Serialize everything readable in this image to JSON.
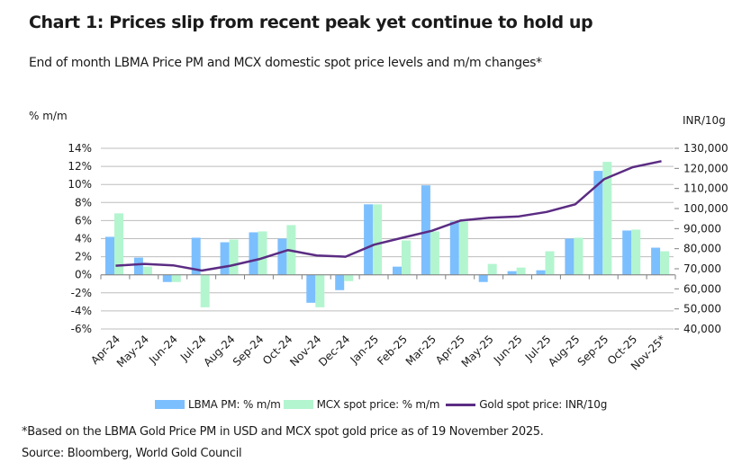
{
  "header": {
    "title": "Chart 1: Prices slip from recent peak yet continue to hold up",
    "subtitle": "End of month LBMA Price PM and MCX domestic spot price levels and m/m changes*"
  },
  "footer": {
    "footnote": "*Based on the LBMA Gold Price PM in USD and MCX spot gold price as of 19 November 2025.",
    "source": "Source: Bloomberg, World Gold Council"
  },
  "colors": {
    "lbma": "#7cbfff",
    "mcx": "#b3f5cf",
    "line": "#5b2c83",
    "grid": "#bdbdbd",
    "axis": "#808080"
  },
  "chart_data": {
    "type": "bar",
    "title": "Chart 1: Prices slip from recent peak yet continue to hold up",
    "subtitle": "End of month LBMA Price PM and MCX domestic spot price levels and m/m changes*",
    "xlabel": "",
    "ylabel": "% m/m",
    "y2label": "INR/10g",
    "categories": [
      "Apr-24",
      "May-24",
      "Jun-24",
      "Jul-24",
      "Aug-24",
      "Sep-24",
      "Oct-24",
      "Nov-24",
      "Dec-24",
      "Jan-25",
      "Feb-25",
      "Mar-25",
      "Apr-25",
      "May-25",
      "Jun-25",
      "Jul-25",
      "Aug-25",
      "Sep-25",
      "Oct-25",
      "Nov-25*"
    ],
    "ylim": [
      -6,
      14
    ],
    "yticks": [
      "14%",
      "12%",
      "10%",
      "8%",
      "6%",
      "4%",
      "2%",
      "0%",
      "-2%",
      "-4%",
      "-6%"
    ],
    "y2lim": [
      40000,
      130000
    ],
    "y2ticks": [
      "130,000",
      "120,000",
      "110,000",
      "100,000",
      "90,000",
      "80,000",
      "70,000",
      "60,000",
      "50,000",
      "40,000"
    ],
    "grid": true,
    "legend_position": "bottom",
    "series": [
      {
        "name": "LBMA PM: % m/m",
        "type": "bar",
        "axis": "left",
        "values": [
          4.2,
          1.9,
          -0.8,
          4.1,
          3.6,
          4.7,
          4.0,
          -3.1,
          -1.7,
          7.8,
          0.9,
          9.9,
          5.9,
          -0.8,
          0.4,
          0.5,
          4.0,
          11.5,
          4.9,
          3.0
        ]
      },
      {
        "name": "MCX spot price: % m/m",
        "type": "bar",
        "axis": "left",
        "values": [
          6.8,
          0.9,
          -0.8,
          -3.6,
          3.9,
          4.8,
          5.5,
          -3.6,
          -0.7,
          7.8,
          3.8,
          4.8,
          5.9,
          1.2,
          0.8,
          2.6,
          4.1,
          12.5,
          5.0,
          2.6
        ]
      },
      {
        "name": "Gold spot price: INR/10g",
        "type": "line",
        "axis": "right",
        "values": [
          71500,
          72400,
          71700,
          69100,
          71500,
          74800,
          79300,
          76600,
          76000,
          82000,
          85500,
          88900,
          94000,
          95400,
          96000,
          98300,
          102100,
          114600,
          120600,
          123600
        ]
      }
    ]
  }
}
